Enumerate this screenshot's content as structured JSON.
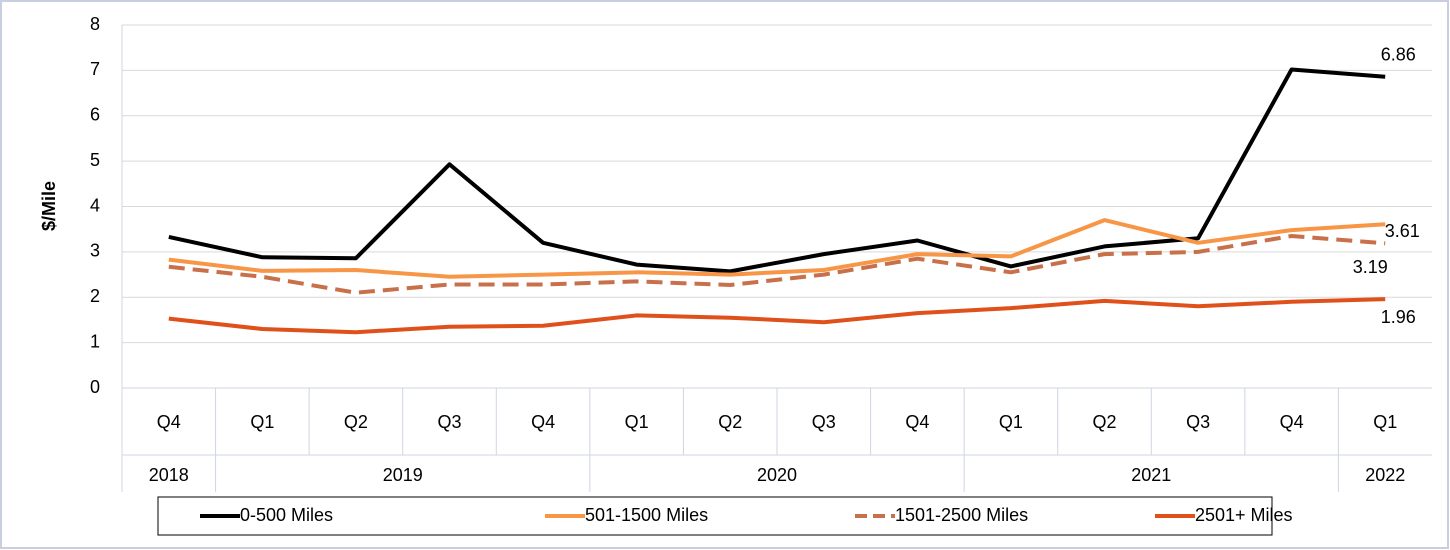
{
  "chart_data": {
    "type": "line",
    "y_label": "$/Mile",
    "category_groups": [
      {
        "label": "2018",
        "categories": [
          "Q4"
        ]
      },
      {
        "label": "2019",
        "categories": [
          "Q1",
          "Q2",
          "Q3",
          "Q4"
        ]
      },
      {
        "label": "2020",
        "categories": [
          "Q1",
          "Q2",
          "Q3",
          "Q4"
        ]
      },
      {
        "label": "2021",
        "categories": [
          "Q1",
          "Q2",
          "Q3",
          "Q4"
        ]
      },
      {
        "label": "2022",
        "categories": [
          "Q1"
        ]
      }
    ],
    "series": [
      {
        "name": "0-500 Miles",
        "color": "#000000",
        "dashed": false,
        "values": [
          3.33,
          2.88,
          2.86,
          4.93,
          3.2,
          2.72,
          2.57,
          2.95,
          3.25,
          2.68,
          3.12,
          3.3,
          7.02,
          6.86
        ]
      },
      {
        "name": "501-1500 Miles",
        "color": "#f79646",
        "dashed": false,
        "values": [
          2.83,
          2.58,
          2.6,
          2.45,
          2.5,
          2.55,
          2.5,
          2.6,
          2.95,
          2.9,
          3.7,
          3.2,
          3.48,
          3.61
        ]
      },
      {
        "name": "1501-2500 Miles",
        "color": "#c8704a",
        "dashed": true,
        "values": [
          2.67,
          2.45,
          2.1,
          2.28,
          2.28,
          2.35,
          2.27,
          2.5,
          2.85,
          2.55,
          2.95,
          3.0,
          3.35,
          3.19
        ]
      },
      {
        "name": "2501+ Miles",
        "color": "#e0501b",
        "dashed": false,
        "values": [
          1.53,
          1.3,
          1.23,
          1.35,
          1.37,
          1.6,
          1.55,
          1.45,
          1.65,
          1.76,
          1.92,
          1.8,
          1.9,
          1.96
        ]
      }
    ],
    "label_last_point": true,
    "ylim": [
      0,
      8
    ],
    "yticks": [
      0,
      1,
      2,
      3,
      4,
      5,
      6,
      7,
      8
    ],
    "grid": true,
    "legend": "bottom"
  }
}
